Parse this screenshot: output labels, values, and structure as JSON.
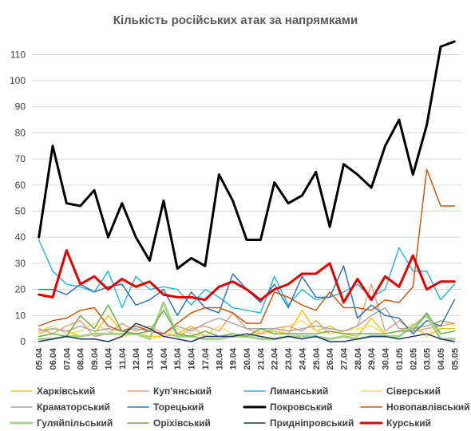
{
  "chart_data": {
    "type": "line",
    "title": "Кількість російських атак за напрямками",
    "xlabel": "",
    "ylabel": "",
    "ylim": [
      0,
      115
    ],
    "yticks": [
      0,
      10,
      20,
      30,
      40,
      50,
      60,
      70,
      80,
      90,
      100,
      110
    ],
    "grid": "horizontal",
    "legend_position": "bottom",
    "categories": [
      "05.04",
      "06.04",
      "07.04",
      "08.04",
      "09.04",
      "10.04",
      "11.04",
      "12.04",
      "13.04",
      "14.04",
      "15.04",
      "16.04",
      "17.04",
      "18.04",
      "19.04",
      "20.04",
      "21.04",
      "22.04",
      "23.04",
      "24.04",
      "25.04",
      "26.04",
      "27.04",
      "28.04",
      "29.04",
      "30.04",
      "01.05",
      "02.05",
      "03.05",
      "04.05",
      "05.05"
    ],
    "series": [
      {
        "name": "Харківський",
        "color": "#f0c419",
        "width": 1.5,
        "values": [
          3,
          5,
          4,
          2,
          3,
          10,
          4,
          3,
          2,
          2,
          3,
          6,
          2,
          2,
          3,
          2,
          3,
          4,
          3,
          12,
          4,
          6,
          3,
          2,
          9,
          3,
          4,
          6,
          2,
          5,
          5
        ]
      },
      {
        "name": "Куп'янський",
        "color": "#e8a17a",
        "width": 1.5,
        "values": [
          5,
          3,
          6,
          8,
          2,
          3,
          7,
          4,
          6,
          3,
          2,
          5,
          6,
          4,
          11,
          5,
          3,
          5,
          6,
          4,
          8,
          3,
          4,
          6,
          22,
          4,
          8,
          4,
          5,
          6,
          7
        ]
      },
      {
        "name": "Лиманський",
        "color": "#29b7e3",
        "width": 1.5,
        "values": [
          39,
          27,
          22,
          21,
          19,
          27,
          13,
          25,
          20,
          21,
          20,
          14,
          20,
          17,
          13,
          12,
          11,
          25,
          14,
          20,
          16,
          17,
          19,
          22,
          17,
          20,
          36,
          27,
          27,
          16,
          22
        ]
      },
      {
        "name": "Сіверський",
        "color": "#ffd966",
        "width": 1.5,
        "values": [
          4,
          6,
          3,
          4,
          7,
          4,
          2,
          3,
          1,
          2,
          5,
          3,
          2,
          6,
          3,
          2,
          4,
          3,
          6,
          8,
          4,
          3,
          4,
          5,
          6,
          3,
          4,
          7,
          2,
          8,
          6
        ]
      },
      {
        "name": "Краматорський",
        "color": "#a6a6a6",
        "width": 1.5,
        "values": [
          4,
          5,
          4,
          6,
          4,
          5,
          4,
          5,
          4,
          3,
          6,
          4,
          7,
          9,
          7,
          5,
          5,
          5,
          4,
          5,
          6,
          5,
          4,
          6,
          10,
          13,
          5,
          5,
          6,
          8,
          7
        ]
      },
      {
        "name": "Торецький",
        "color": "#2e75b6",
        "width": 1.5,
        "values": [
          20,
          20,
          18,
          22,
          19,
          21,
          22,
          14,
          16,
          20,
          10,
          19,
          13,
          11,
          26,
          20,
          15,
          22,
          13,
          25,
          17,
          17,
          29,
          9,
          14,
          10,
          9,
          3,
          8,
          6,
          16
        ]
      },
      {
        "name": "Покровський",
        "color": "#000000",
        "width": 3,
        "values": [
          40,
          75,
          53,
          52,
          58,
          40,
          53,
          40,
          31,
          54,
          28,
          32,
          29,
          64,
          54,
          39,
          39,
          61,
          53,
          56,
          65,
          44,
          68,
          64,
          59,
          75,
          85,
          64,
          83,
          113,
          115
        ]
      },
      {
        "name": "Новопавлівський",
        "color": "#c55a11",
        "width": 1.5,
        "values": [
          6,
          8,
          9,
          12,
          13,
          6,
          4,
          6,
          4,
          3,
          7,
          11,
          13,
          13,
          11,
          7,
          7,
          19,
          17,
          14,
          12,
          19,
          13,
          13,
          12,
          16,
          15,
          21,
          66,
          52,
          52
        ]
      },
      {
        "name": "Гуляйпільський",
        "color": "#a9d18e",
        "width": 3,
        "values": [
          1,
          1,
          2,
          2,
          3,
          3,
          3,
          3,
          1,
          15,
          2,
          2,
          1,
          1,
          2,
          2,
          1,
          1,
          2,
          2,
          2,
          1,
          2,
          1,
          2,
          2,
          2,
          6,
          10,
          1,
          1
        ]
      },
      {
        "name": "Оріхівський",
        "color": "#70ad47",
        "width": 1.5,
        "values": [
          2,
          3,
          2,
          10,
          5,
          14,
          4,
          3,
          4,
          12,
          3,
          2,
          4,
          2,
          3,
          2,
          5,
          3,
          3,
          3,
          3,
          4,
          3,
          3,
          3,
          3,
          4,
          4,
          11,
          3,
          4
        ]
      },
      {
        "name": "Придніпровський",
        "color": "#1f3864",
        "width": 1.5,
        "values": [
          0,
          1,
          2,
          1,
          1,
          0,
          2,
          7,
          5,
          2,
          1,
          0,
          2,
          2,
          2,
          3,
          2,
          1,
          2,
          1,
          2,
          0,
          0,
          1,
          2,
          2,
          1,
          2,
          3,
          1,
          0
        ]
      },
      {
        "name": "Курський",
        "color": "#e00000",
        "width": 3,
        "values": [
          18,
          17,
          35,
          22,
          25,
          20,
          24,
          21,
          23,
          18,
          17,
          17,
          16,
          21,
          23,
          20,
          16,
          20,
          22,
          26,
          26,
          30,
          15,
          24,
          16,
          25,
          21,
          33,
          20,
          23,
          23
        ]
      }
    ]
  }
}
